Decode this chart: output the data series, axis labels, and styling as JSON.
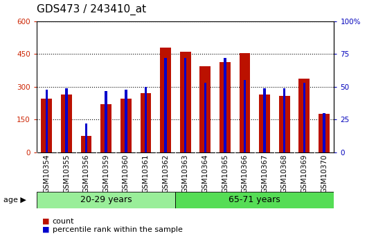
{
  "title": "GDS473 / 243410_at",
  "samples": [
    "GSM10354",
    "GSM10355",
    "GSM10356",
    "GSM10359",
    "GSM10360",
    "GSM10361",
    "GSM10362",
    "GSM10363",
    "GSM10364",
    "GSM10365",
    "GSM10366",
    "GSM10367",
    "GSM10368",
    "GSM10369",
    "GSM10370"
  ],
  "counts": [
    245,
    265,
    75,
    220,
    245,
    270,
    480,
    460,
    395,
    415,
    455,
    265,
    260,
    338,
    175
  ],
  "percentile_ranks": [
    48,
    49,
    22,
    47,
    48,
    50,
    72,
    72,
    53,
    72,
    55,
    49,
    49,
    53,
    30
  ],
  "groups": [
    {
      "label": "20-29 years",
      "start": 0,
      "end": 7,
      "color": "#99ee99"
    },
    {
      "label": "65-71 years",
      "start": 7,
      "end": 15,
      "color": "#55dd55"
    }
  ],
  "bar_color": "#bb1100",
  "percentile_color": "#0000cc",
  "xtick_bg": "#cccccc",
  "plot_bg": "#ffffff",
  "ylim_left": [
    0,
    600
  ],
  "ylim_right": [
    0,
    100
  ],
  "yticks_left": [
    0,
    150,
    300,
    450,
    600
  ],
  "yticks_right": [
    0,
    25,
    50,
    75,
    100
  ],
  "left_tick_color": "#cc2200",
  "right_tick_color": "#0000bb",
  "grid_color": "black",
  "legend_count_label": "count",
  "legend_pct_label": "percentile rank within the sample",
  "age_label": "age",
  "title_fontsize": 11,
  "tick_fontsize": 7.5,
  "group_fontsize": 9,
  "legend_fontsize": 8
}
